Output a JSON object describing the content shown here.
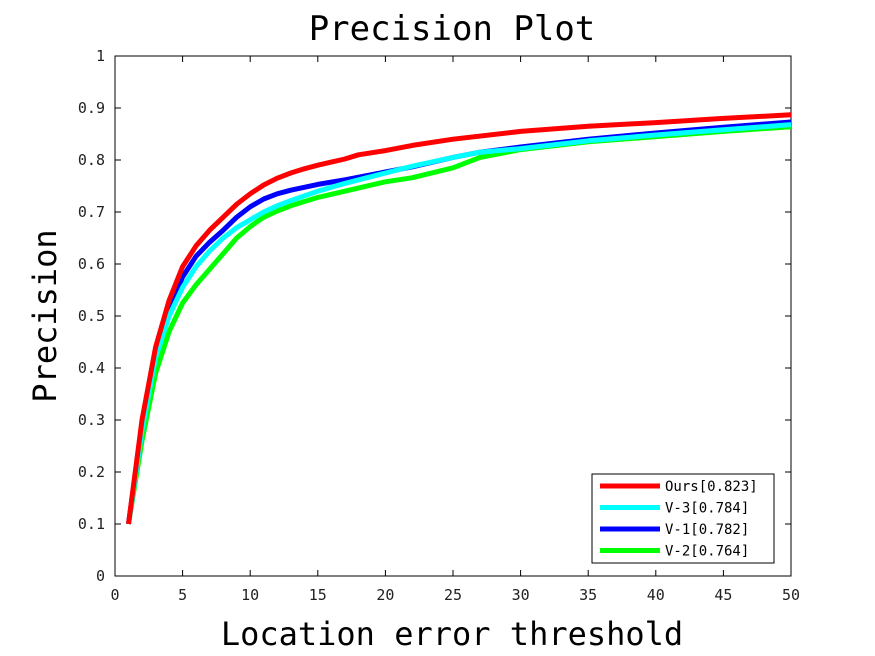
{
  "chart_data": {
    "type": "line",
    "title": "Precision Plot",
    "xlabel": "Location error threshold",
    "ylabel": "Precision",
    "xlim": [
      0,
      50
    ],
    "ylim": [
      0,
      1
    ],
    "x_ticks": [
      0,
      5,
      10,
      15,
      20,
      25,
      30,
      35,
      40,
      45,
      50
    ],
    "x_tick_labels": [
      "0",
      "5",
      "10",
      "15",
      "20",
      "25",
      "30",
      "35",
      "40",
      "45",
      "50"
    ],
    "y_ticks": [
      0,
      0.1,
      0.2,
      0.3,
      0.4,
      0.5,
      0.6,
      0.7,
      0.8,
      0.9,
      1
    ],
    "y_tick_labels": [
      "0",
      "0.1",
      "0.2",
      "0.3",
      "0.4",
      "0.5",
      "0.6",
      "0.7",
      "0.8",
      "0.9",
      "1"
    ],
    "grid": false,
    "legend_position": "bottom-right",
    "series": [
      {
        "name": "Ours[0.823]",
        "color": "#ff0000",
        "x": [
          1,
          2,
          3,
          4,
          5,
          6,
          7,
          8,
          9,
          10,
          11,
          12,
          13,
          14,
          15,
          16,
          17,
          18,
          20,
          22,
          25,
          30,
          35,
          40,
          45,
          50
        ],
        "y": [
          0.1,
          0.3,
          0.44,
          0.53,
          0.595,
          0.635,
          0.665,
          0.69,
          0.715,
          0.735,
          0.752,
          0.765,
          0.775,
          0.783,
          0.79,
          0.796,
          0.802,
          0.81,
          0.818,
          0.828,
          0.84,
          0.855,
          0.865,
          0.872,
          0.88,
          0.887
        ]
      },
      {
        "name": "V-3[0.784]",
        "color": "#00ffff",
        "x": [
          1,
          2,
          3,
          4,
          5,
          6,
          7,
          8,
          9,
          10,
          11,
          12,
          13,
          15,
          17,
          20,
          22,
          25,
          27,
          30,
          35,
          40,
          45,
          50
        ],
        "y": [
          0.1,
          0.28,
          0.42,
          0.5,
          0.555,
          0.595,
          0.625,
          0.65,
          0.67,
          0.685,
          0.7,
          0.712,
          0.722,
          0.74,
          0.755,
          0.775,
          0.788,
          0.805,
          0.815,
          0.822,
          0.837,
          0.848,
          0.858,
          0.868
        ]
      },
      {
        "name": "V-1[0.782]",
        "color": "#0000ff",
        "x": [
          1,
          2,
          3,
          4,
          5,
          6,
          7,
          8,
          9,
          10,
          11,
          12,
          13,
          15,
          17,
          20,
          22,
          25,
          27,
          30,
          35,
          40,
          45,
          50
        ],
        "y": [
          0.1,
          0.29,
          0.43,
          0.515,
          0.575,
          0.615,
          0.642,
          0.665,
          0.69,
          0.71,
          0.725,
          0.735,
          0.742,
          0.753,
          0.762,
          0.777,
          0.787,
          0.805,
          0.815,
          0.825,
          0.84,
          0.852,
          0.863,
          0.873
        ]
      },
      {
        "name": "V-2[0.764]",
        "color": "#00ff00",
        "x": [
          1,
          2,
          3,
          4,
          5,
          6,
          7,
          8,
          9,
          10,
          11,
          12,
          13,
          15,
          17,
          20,
          22,
          25,
          27,
          30,
          35,
          40,
          45,
          50
        ],
        "y": [
          0.1,
          0.26,
          0.39,
          0.47,
          0.525,
          0.56,
          0.59,
          0.62,
          0.65,
          0.672,
          0.69,
          0.702,
          0.712,
          0.728,
          0.74,
          0.758,
          0.766,
          0.785,
          0.805,
          0.82,
          0.835,
          0.845,
          0.855,
          0.864
        ]
      }
    ]
  }
}
